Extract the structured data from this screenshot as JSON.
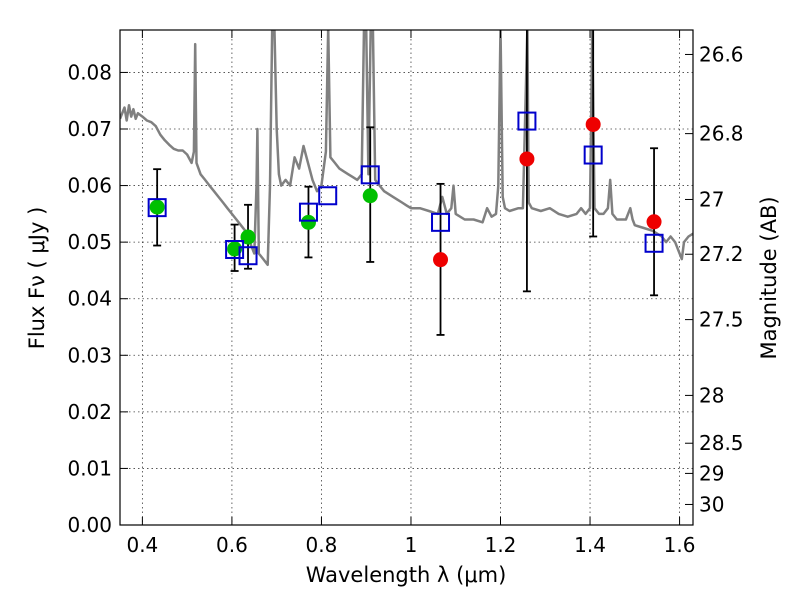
{
  "chart_data": {
    "type": "scatter",
    "xlabel": "Wavelength  λ (μm)",
    "ylabel": "Flux  Fν  ( μJy )",
    "y2label": "Magnitude (AB)",
    "xlim": [
      0.35,
      1.63
    ],
    "ylim": [
      0.0,
      0.0875
    ],
    "grid": true,
    "x_ticks": [
      0.4,
      0.6,
      0.8,
      1.0,
      1.2,
      1.4,
      1.6
    ],
    "x_tick_labels": [
      "0.4",
      "0.6",
      "0.8",
      "1",
      "1.2",
      "1.4",
      "1.6"
    ],
    "y_ticks": [
      0.0,
      0.01,
      0.02,
      0.03,
      0.04,
      0.05,
      0.06,
      0.07,
      0.08
    ],
    "y_tick_labels": [
      "0.00",
      "0.01",
      "0.02",
      "0.03",
      "0.04",
      "0.05",
      "0.06",
      "0.07",
      "0.08"
    ],
    "mag_ticks": [
      26.6,
      26.8,
      27,
      27.2,
      27.5,
      28,
      28.5,
      29,
      30
    ],
    "mag_tick_labels": [
      "26.6",
      "26.8",
      "27",
      "27.2",
      "27.5",
      "28",
      "28.5",
      "29",
      "30"
    ],
    "series": [
      {
        "kind": "line",
        "color": "#808080",
        "points": [
          [
            0.35,
            0.0718
          ],
          [
            0.36,
            0.0738
          ],
          [
            0.365,
            0.0715
          ],
          [
            0.37,
            0.0742
          ],
          [
            0.375,
            0.0722
          ],
          [
            0.38,
            0.0735
          ],
          [
            0.385,
            0.0718
          ],
          [
            0.39,
            0.0728
          ],
          [
            0.4,
            0.0722
          ],
          [
            0.41,
            0.0715
          ],
          [
            0.42,
            0.0712
          ],
          [
            0.43,
            0.0705
          ],
          [
            0.44,
            0.069
          ],
          [
            0.45,
            0.068
          ],
          [
            0.46,
            0.0672
          ],
          [
            0.47,
            0.0665
          ],
          [
            0.48,
            0.0662
          ],
          [
            0.49,
            0.0662
          ],
          [
            0.5,
            0.0655
          ],
          [
            0.51,
            0.064
          ],
          [
            0.515,
            0.066
          ],
          [
            0.518,
            0.085
          ],
          [
            0.521,
            0.064
          ],
          [
            0.53,
            0.062
          ],
          [
            0.54,
            0.061
          ],
          [
            0.55,
            0.06
          ],
          [
            0.56,
            0.059
          ],
          [
            0.57,
            0.058
          ],
          [
            0.58,
            0.057
          ],
          [
            0.59,
            0.056
          ],
          [
            0.6,
            0.055
          ],
          [
            0.61,
            0.054
          ],
          [
            0.62,
            0.053
          ],
          [
            0.63,
            0.052
          ],
          [
            0.64,
            0.05
          ],
          [
            0.65,
            0.048
          ],
          [
            0.655,
            0.06
          ],
          [
            0.657,
            0.07
          ],
          [
            0.66,
            0.048
          ],
          [
            0.67,
            0.047
          ],
          [
            0.68,
            0.046
          ],
          [
            0.685,
            0.06
          ],
          [
            0.69,
            0.088
          ],
          [
            0.695,
            0.088
          ],
          [
            0.7,
            0.07
          ],
          [
            0.705,
            0.062
          ],
          [
            0.71,
            0.06
          ],
          [
            0.72,
            0.061
          ],
          [
            0.73,
            0.06
          ],
          [
            0.74,
            0.065
          ],
          [
            0.75,
            0.063
          ],
          [
            0.76,
            0.067
          ],
          [
            0.77,
            0.064
          ],
          [
            0.78,
            0.061
          ],
          [
            0.79,
            0.059
          ],
          [
            0.8,
            0.06
          ],
          [
            0.81,
            0.066
          ],
          [
            0.815,
            0.088
          ],
          [
            0.82,
            0.065
          ],
          [
            0.83,
            0.064
          ],
          [
            0.84,
            0.063
          ],
          [
            0.85,
            0.0625
          ],
          [
            0.86,
            0.062
          ],
          [
            0.87,
            0.0615
          ],
          [
            0.88,
            0.061
          ],
          [
            0.89,
            0.062
          ],
          [
            0.895,
            0.088
          ],
          [
            0.9,
            0.088
          ],
          [
            0.905,
            0.062
          ],
          [
            0.91,
            0.088
          ],
          [
            0.915,
            0.088
          ],
          [
            0.92,
            0.061
          ],
          [
            0.93,
            0.06
          ],
          [
            0.94,
            0.059
          ],
          [
            0.95,
            0.0585
          ],
          [
            0.96,
            0.058
          ],
          [
            0.97,
            0.0575
          ],
          [
            0.98,
            0.057
          ],
          [
            0.99,
            0.0565
          ],
          [
            1.0,
            0.056
          ],
          [
            1.02,
            0.056
          ],
          [
            1.04,
            0.0555
          ],
          [
            1.06,
            0.055
          ],
          [
            1.07,
            0.058
          ],
          [
            1.08,
            0.055
          ],
          [
            1.09,
            0.056
          ],
          [
            1.095,
            0.06
          ],
          [
            1.1,
            0.055
          ],
          [
            1.12,
            0.054
          ],
          [
            1.14,
            0.054
          ],
          [
            1.16,
            0.0535
          ],
          [
            1.17,
            0.056
          ],
          [
            1.18,
            0.0545
          ],
          [
            1.19,
            0.055
          ],
          [
            1.195,
            0.06
          ],
          [
            1.2,
            0.088
          ],
          [
            1.205,
            0.058
          ],
          [
            1.21,
            0.056
          ],
          [
            1.22,
            0.0555
          ],
          [
            1.24,
            0.056
          ],
          [
            1.25,
            0.056
          ],
          [
            1.26,
            0.088
          ],
          [
            1.263,
            0.057
          ],
          [
            1.27,
            0.056
          ],
          [
            1.29,
            0.0555
          ],
          [
            1.31,
            0.056
          ],
          [
            1.33,
            0.055
          ],
          [
            1.35,
            0.0545
          ],
          [
            1.37,
            0.055
          ],
          [
            1.38,
            0.056
          ],
          [
            1.39,
            0.055
          ],
          [
            1.4,
            0.056
          ],
          [
            1.405,
            0.088
          ],
          [
            1.41,
            0.056
          ],
          [
            1.42,
            0.055
          ],
          [
            1.43,
            0.055
          ],
          [
            1.44,
            0.056
          ],
          [
            1.445,
            0.061
          ],
          [
            1.45,
            0.055
          ],
          [
            1.46,
            0.054
          ],
          [
            1.48,
            0.054
          ],
          [
            1.49,
            0.056
          ],
          [
            1.495,
            0.054
          ],
          [
            1.5,
            0.053
          ],
          [
            1.52,
            0.0525
          ],
          [
            1.54,
            0.052
          ],
          [
            1.56,
            0.051
          ],
          [
            1.57,
            0.05
          ],
          [
            1.58,
            0.051
          ],
          [
            1.59,
            0.05
          ],
          [
            1.6,
            0.048
          ],
          [
            1.605,
            0.047
          ],
          [
            1.61,
            0.05
          ],
          [
            1.62,
            0.051
          ],
          [
            1.63,
            0.0515
          ]
        ]
      },
      {
        "kind": "circles",
        "color": "#00c000",
        "points": [
          [
            0.433,
            0.0562
          ],
          [
            0.606,
            0.0488
          ],
          [
            0.636,
            0.0509
          ],
          [
            0.771,
            0.0535
          ],
          [
            0.909,
            0.0582
          ]
        ]
      },
      {
        "kind": "circles",
        "color": "#ee0000",
        "points": [
          [
            1.066,
            0.0469
          ],
          [
            1.259,
            0.0647
          ],
          [
            1.407,
            0.0708
          ],
          [
            1.543,
            0.0536
          ]
        ]
      },
      {
        "kind": "squares",
        "color": "#0000cc",
        "points": [
          [
            0.433,
            0.0561
          ],
          [
            0.606,
            0.0487
          ],
          [
            0.636,
            0.0476
          ],
          [
            0.771,
            0.0553
          ],
          [
            0.814,
            0.0582
          ],
          [
            0.909,
            0.0619
          ],
          [
            1.066,
            0.0535
          ],
          [
            1.259,
            0.0714
          ],
          [
            1.407,
            0.0654
          ],
          [
            1.543,
            0.0498
          ]
        ]
      },
      {
        "kind": "errorbars",
        "color": "#000000",
        "points": [
          [
            0.433,
            0.0494,
            0.0629
          ],
          [
            0.606,
            0.0449,
            0.0531
          ],
          [
            0.636,
            0.0453,
            0.0566
          ],
          [
            0.771,
            0.0473,
            0.0598
          ],
          [
            0.909,
            0.0465,
            0.0703
          ],
          [
            1.066,
            0.0336,
            0.0603
          ],
          [
            1.259,
            0.0413,
            0.088
          ],
          [
            1.407,
            0.051,
            0.088
          ],
          [
            1.543,
            0.0406,
            0.0666
          ]
        ]
      }
    ]
  }
}
